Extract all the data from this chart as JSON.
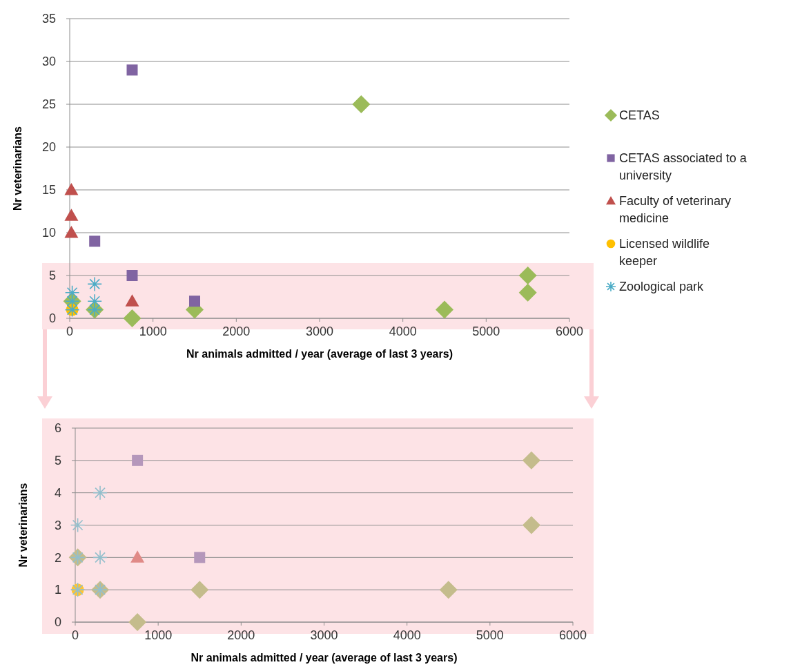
{
  "chart_data": [
    {
      "type": "scatter",
      "xlabel": "Nr animals admitted / year (average of last 3 years)",
      "ylabel": "Nr veterinarians",
      "xlim": [
        0,
        6000
      ],
      "xticks": [
        0,
        1000,
        2000,
        3000,
        4000,
        5000,
        6000
      ],
      "ylim": [
        0,
        35
      ],
      "yticks": [
        0,
        5,
        10,
        15,
        20,
        25,
        30,
        35
      ],
      "grid": "y",
      "legend": "right",
      "series": [
        {
          "name": "CETAS",
          "color": "#9bbb59",
          "marker": "diamond",
          "x": [
            3500,
            5500,
            5500,
            4500,
            1500,
            750,
            300,
            30
          ],
          "values": [
            25,
            5,
            3,
            1,
            1,
            0,
            1,
            2
          ]
        },
        {
          "name": "CETAS associated to a university",
          "color": "#8064a2",
          "marker": "square",
          "x": [
            750,
            300,
            750,
            1500
          ],
          "values": [
            29,
            9,
            5,
            2
          ]
        },
        {
          "name": "Faculty of veterinary medicine",
          "color": "#c0504d",
          "marker": "triangle",
          "x": [
            20,
            20,
            20,
            750
          ],
          "values": [
            15,
            12,
            10,
            2
          ]
        },
        {
          "name": "Licensed wildlife keeper",
          "color": "#ffc000",
          "marker": "circle",
          "x": [
            30
          ],
          "values": [
            1
          ]
        },
        {
          "name": "Zoological park",
          "color": "#4bacc6",
          "marker": "cross",
          "x": [
            30,
            300,
            30,
            300,
            30,
            300
          ],
          "values": [
            3,
            4,
            2,
            2,
            1,
            1
          ]
        }
      ]
    },
    {
      "type": "scatter",
      "xlabel": "Nr animals admitted / year (average of last 3 years)",
      "ylabel": "Nr veterinarians",
      "xlim": [
        0,
        6000
      ],
      "xticks": [
        0,
        1000,
        2000,
        3000,
        4000,
        5000,
        6000
      ],
      "ylim": [
        0,
        6
      ],
      "yticks": [
        0,
        1,
        2,
        3,
        4,
        5,
        6
      ],
      "grid": "y",
      "series": [
        {
          "color": "#c4bc8c",
          "marker": "diamond",
          "x": [
            5500,
            5500,
            4500,
            1500,
            750,
            300,
            30
          ],
          "values": [
            5,
            3,
            1,
            1,
            0,
            1,
            2
          ]
        },
        {
          "color": "#b597bb",
          "marker": "square",
          "x": [
            750,
            1500
          ],
          "values": [
            5,
            2
          ]
        },
        {
          "color": "#e08a87",
          "marker": "triangle",
          "x": [
            750
          ],
          "values": [
            2
          ]
        },
        {
          "color": "#ffc533",
          "marker": "circle",
          "x": [
            30
          ],
          "values": [
            1
          ]
        },
        {
          "color": "#93bfcc",
          "marker": "cross",
          "x": [
            30,
            300,
            30,
            300,
            30,
            300
          ],
          "values": [
            3,
            4,
            2,
            2,
            1,
            1
          ]
        }
      ]
    }
  ]
}
